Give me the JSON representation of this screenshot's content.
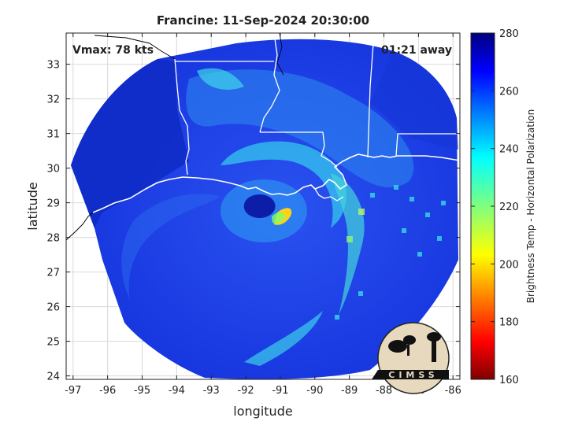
{
  "title": "Francine: 11-Sep-2024 20:30:00",
  "annotations": {
    "vmax": "Vmax: 78 kts",
    "time_away": "01:21 away"
  },
  "axes": {
    "xlabel": "longitude",
    "ylabel": "latitude",
    "xlim": [
      -97.2,
      -85.8
    ],
    "ylim": [
      23.9,
      33.9
    ],
    "xticks": [
      "-97",
      "-96",
      "-95",
      "-94",
      "-93",
      "-92",
      "-91",
      "-90",
      "-89",
      "-88",
      "-87",
      "-86"
    ],
    "yticks": [
      "24",
      "25",
      "26",
      "27",
      "28",
      "29",
      "30",
      "31",
      "32",
      "33"
    ],
    "grid": true
  },
  "colorbar": {
    "label": "Brightness Temp - Horizontal Polarization",
    "range": [
      160,
      280
    ],
    "ticks": [
      "280",
      "260",
      "240",
      "220",
      "200",
      "180",
      "160"
    ],
    "colormap": "jet"
  },
  "storm": {
    "eye_lon": -91.6,
    "eye_lat": 28.9
  },
  "logo": {
    "text": "CIMSS"
  },
  "colors": {
    "field_base": "#1a33e0",
    "coast_line": "#ffffff",
    "background": "#ffffff"
  }
}
